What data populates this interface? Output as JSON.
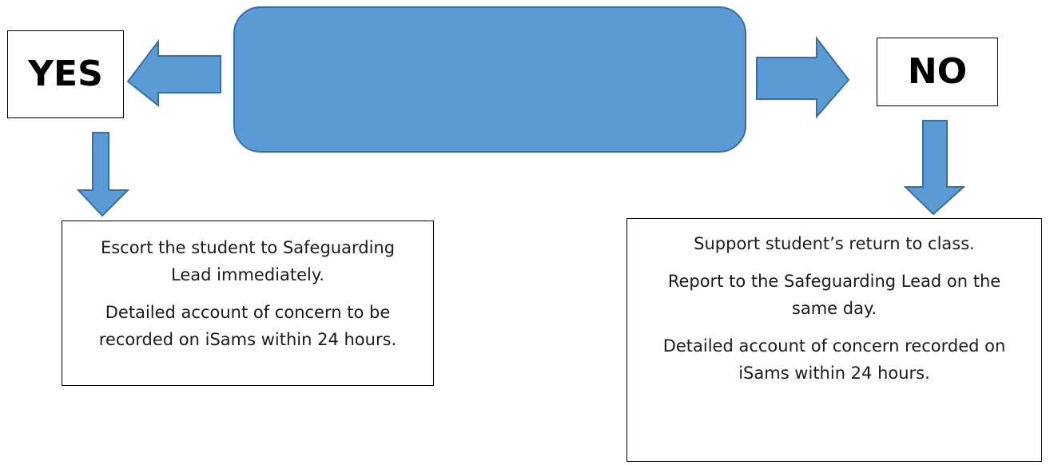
{
  "decision_box": {
    "text": ""
  },
  "yes_branch": {
    "label": "YES",
    "action_lines": [
      "Escort the student to Safeguarding Lead immediately.",
      "Detailed account of concern to be recorded on iSams within 24 hours."
    ]
  },
  "no_branch": {
    "label": "NO",
    "action_lines": [
      "Support student’s return to class.",
      "Report to the Safeguarding Lead on the same day.",
      "Detailed account of concern recorded on iSams within 24 hours."
    ]
  },
  "colors": {
    "arrow_fill": "#5b9bd5",
    "arrow_stroke": "#3a6da8",
    "box_border": "#000000"
  }
}
